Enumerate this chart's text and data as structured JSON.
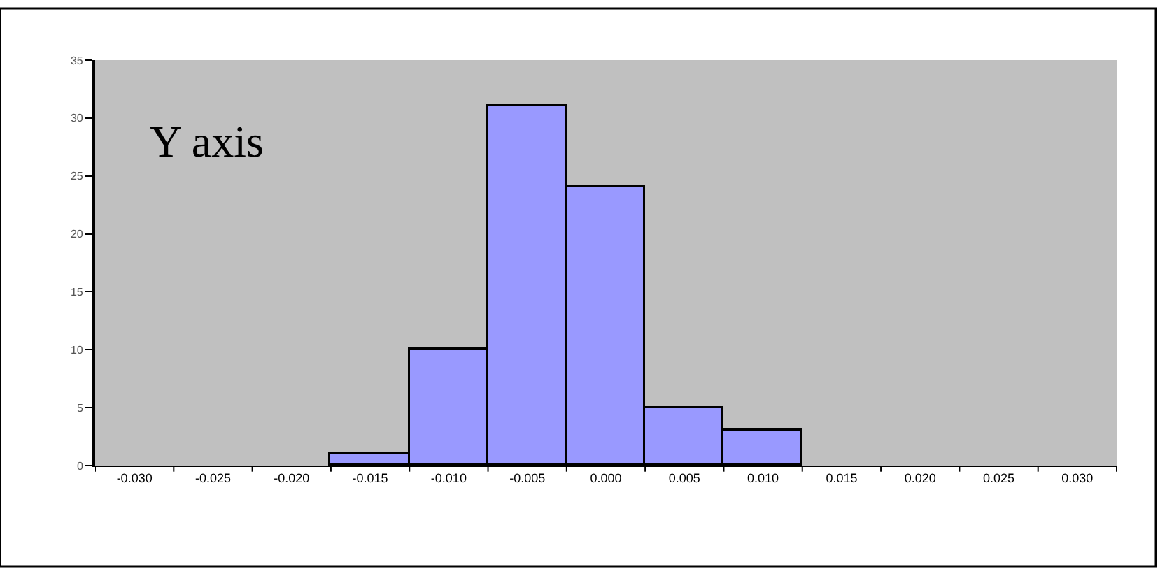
{
  "chart_data": {
    "type": "bar",
    "categories": [
      "-0.030",
      "-0.025",
      "-0.020",
      "-0.015",
      "-0.010",
      "-0.005",
      "0.000",
      "0.005",
      "0.010",
      "0.015",
      "0.020",
      "0.025",
      "0.030"
    ],
    "values": [
      0,
      0,
      0,
      1,
      10,
      31,
      24,
      5,
      3,
      0,
      0,
      0,
      0
    ],
    "color": "#9999ff",
    "ylim": [
      0,
      35
    ],
    "yticks": [
      0,
      5,
      10,
      15,
      20,
      25,
      30,
      35
    ],
    "grid": false,
    "annotations": [
      "Y axis"
    ]
  }
}
